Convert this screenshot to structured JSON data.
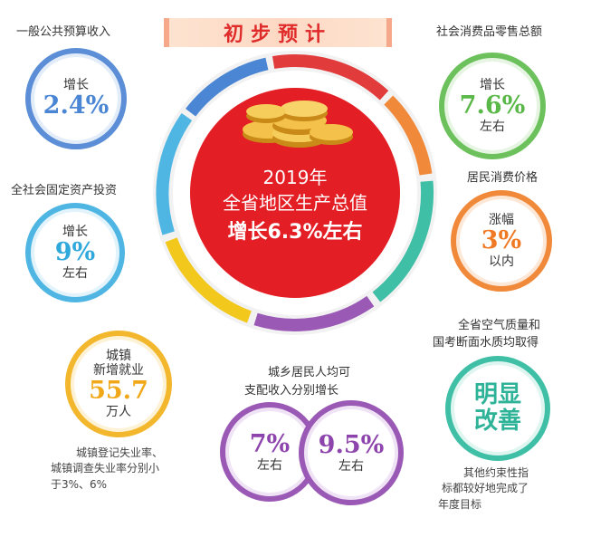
{
  "banner": {
    "title": "初步预计"
  },
  "center": {
    "year_line": "2019年",
    "main_line": "全省地区生产总值",
    "growth_line": "增长6.3%左右"
  },
  "indicators": {
    "public_budget": {
      "label": "一般公共预算收入",
      "cap": "增长",
      "value": "2.4%",
      "color": "#5b8ed6"
    },
    "fixed_investment": {
      "label": "全社会固定资产投资",
      "cap": "增长",
      "value": "9%",
      "sub": "左右",
      "color": "#4fb6e3"
    },
    "employment": {
      "cap1": "城镇",
      "cap2": "新增就业",
      "value": "55.7",
      "sub": "万人",
      "color": "#f2b72c",
      "note": [
        "城镇登记失业率、",
        "城镇调查失业率分别小",
        "于3%、6%"
      ]
    },
    "retail": {
      "label": "社会消费品零售总额",
      "cap": "增长",
      "value": "7.6%",
      "sub": "左右",
      "color": "#6cc15c"
    },
    "cpi": {
      "label": "居民消费价格",
      "cap": "涨幅",
      "value": "3%",
      "sub": "以内",
      "color": "#f0893a"
    },
    "environment": {
      "label": [
        "全省空气质量和",
        "国考断面水质均取得"
      ],
      "value1": "明显",
      "value2": "改善",
      "color": "#3fbfa6",
      "note": [
        "其他约束性指",
        "标都较好地完成了",
        "年度目标"
      ]
    },
    "income": {
      "label": [
        "城乡居民人均可",
        "支配收入分别增长"
      ],
      "value_a": "7%",
      "sub_a": "左右",
      "value_b": "9.5%",
      "sub_b": "左右",
      "color": "#9b59b6"
    }
  },
  "ring_colors": [
    "#4a86d4",
    "#e23b3b",
    "#f0893a",
    "#3fbfa6",
    "#9b59b6",
    "#f2c81c",
    "#4fb6e3"
  ]
}
